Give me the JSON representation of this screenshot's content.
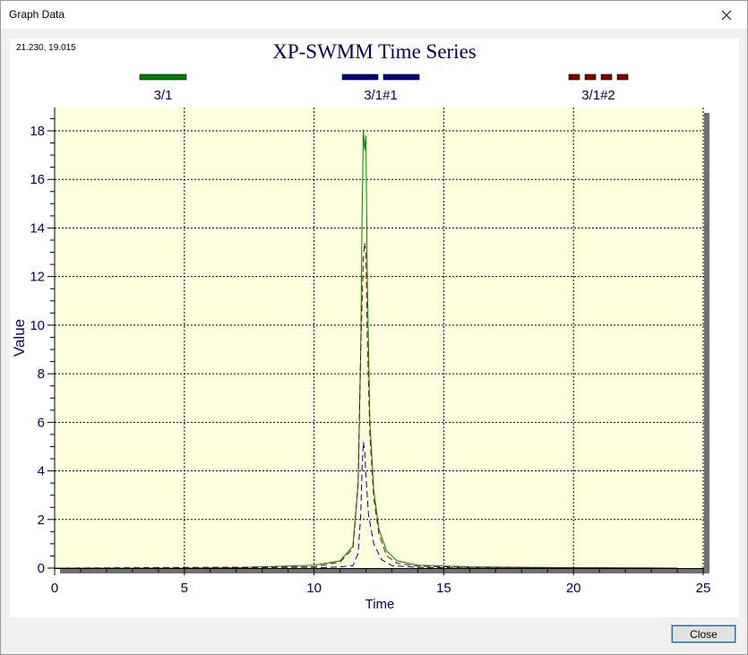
{
  "window": {
    "title": "Graph Data",
    "close_label": "Close"
  },
  "cursor_readout": "21.230, 19.015",
  "colors": {
    "plot_background": "#ffffe0",
    "axis_text": "#000060",
    "title_text": "#000050",
    "series_1": "#008000",
    "series_2": "#000080",
    "series_3": "#800000"
  },
  "chart_data": {
    "type": "line",
    "title": "XP-SWMM Time Series",
    "xlabel": "Time",
    "ylabel": "Value",
    "xlim": [
      0,
      25
    ],
    "ylim": [
      0,
      19
    ],
    "x_ticks": [
      "0",
      "5",
      "10",
      "15",
      "20",
      "25"
    ],
    "y_ticks": [
      "0",
      "2",
      "4",
      "6",
      "8",
      "10",
      "12",
      "14",
      "16",
      "18"
    ],
    "grid": true,
    "legend_position": "top",
    "series": [
      {
        "name": "3/1",
        "style": "solid",
        "color": "#008000",
        "points": [
          [
            0,
            0
          ],
          [
            5,
            0
          ],
          [
            7,
            0.02
          ],
          [
            9,
            0.08
          ],
          [
            10,
            0.12
          ],
          [
            11,
            0.3
          ],
          [
            11.5,
            0.9
          ],
          [
            11.7,
            3.5
          ],
          [
            11.8,
            9
          ],
          [
            11.85,
            14.5
          ],
          [
            11.9,
            18.05
          ],
          [
            11.95,
            17.2
          ],
          [
            12.0,
            17.8
          ],
          [
            12.05,
            12
          ],
          [
            12.15,
            6
          ],
          [
            12.3,
            3.2
          ],
          [
            12.5,
            1.6
          ],
          [
            12.8,
            0.7
          ],
          [
            13.2,
            0.3
          ],
          [
            14,
            0.12
          ],
          [
            16,
            0.05
          ],
          [
            20,
            0.02
          ],
          [
            24,
            0
          ]
        ]
      },
      {
        "name": "3/1#1",
        "style": "dashed",
        "color": "#000080",
        "points": [
          [
            0,
            0
          ],
          [
            10,
            0
          ],
          [
            11,
            0.05
          ],
          [
            11.5,
            0.1
          ],
          [
            11.7,
            0.6
          ],
          [
            11.8,
            2.2
          ],
          [
            11.85,
            4.1
          ],
          [
            11.9,
            5.2
          ],
          [
            11.95,
            4.8
          ],
          [
            12.0,
            3.8
          ],
          [
            12.1,
            2.2
          ],
          [
            12.3,
            1.0
          ],
          [
            12.6,
            0.35
          ],
          [
            13,
            0.1
          ],
          [
            14,
            0.03
          ],
          [
            16,
            0
          ],
          [
            24,
            0
          ]
        ]
      },
      {
        "name": "3/1#2",
        "style": "dashed",
        "color": "#800000",
        "points": [
          [
            0,
            0
          ],
          [
            10,
            0.05
          ],
          [
            11,
            0.25
          ],
          [
            11.5,
            0.8
          ],
          [
            11.7,
            3.5
          ],
          [
            11.8,
            9
          ],
          [
            11.9,
            12.8
          ],
          [
            11.95,
            13.4
          ],
          [
            12.0,
            13.0
          ],
          [
            12.05,
            9.5
          ],
          [
            12.15,
            5.5
          ],
          [
            12.3,
            2.9
          ],
          [
            12.5,
            1.4
          ],
          [
            12.8,
            0.5
          ],
          [
            13.2,
            0.2
          ],
          [
            14,
            0.08
          ],
          [
            16,
            0.03
          ],
          [
            20,
            0.01
          ],
          [
            24,
            0
          ]
        ]
      }
    ]
  }
}
